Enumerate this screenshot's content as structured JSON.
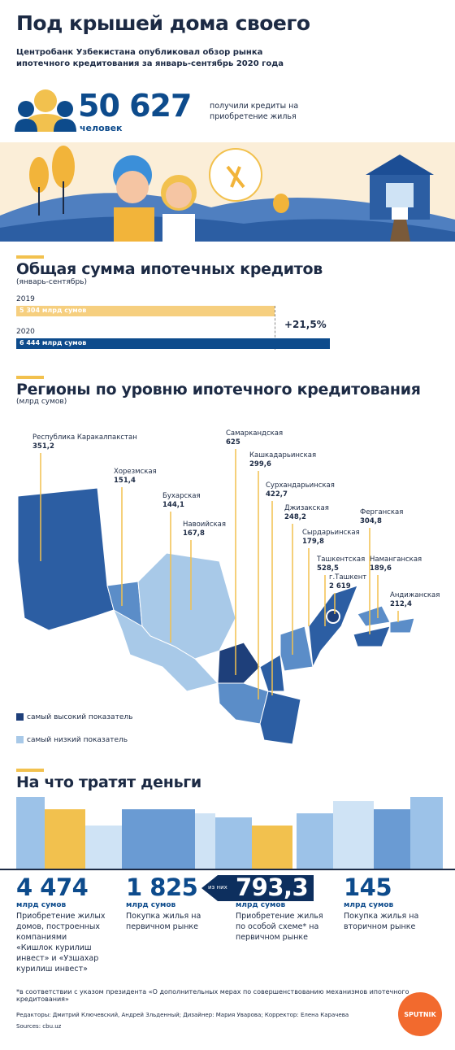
{
  "header": {
    "title": "Под крышей дома своего",
    "subtitle": "Центробанк Узбекистана опубликовал обзор рынка ипотечного кредитования за январь-сентябрь 2020 года"
  },
  "headline": {
    "number": "50 627",
    "unit": "человек",
    "text": "получили кредиты на приобретение жилья"
  },
  "total": {
    "title": "Общая сумма ипотечных кредитов",
    "subtitle": "(январь-сентябрь)",
    "bars": [
      {
        "year": "2019",
        "label": "5 304 млрд сумов",
        "value": 5304
      },
      {
        "year": "2020",
        "label": "6 444 млрд сумов",
        "value": 6444
      }
    ],
    "change": "+21,5%"
  },
  "regions": {
    "title": "Регионы по уровню ипотечного кредитования",
    "subtitle": "(млрд сумов)",
    "items": [
      {
        "name": "Республика Каракалпакстан",
        "value": "351,2"
      },
      {
        "name": "Хорезмская",
        "value": "151,4"
      },
      {
        "name": "Бухарская",
        "value": "144,1"
      },
      {
        "name": "Навоийская",
        "value": "167,8"
      },
      {
        "name": "Самаркандская",
        "value": "625"
      },
      {
        "name": "Кашкадарьинская",
        "value": "299,6"
      },
      {
        "name": "Сурхандарьинская",
        "value": "422,7"
      },
      {
        "name": "Джизакская",
        "value": "248,2"
      },
      {
        "name": "Сырдарьинская",
        "value": "179,8"
      },
      {
        "name": "Ташкентская",
        "value": "528,5"
      },
      {
        "name": "г.Ташкент",
        "value": "2 619"
      },
      {
        "name": "Ферганская",
        "value": "304,8"
      },
      {
        "name": "Наманганская",
        "value": "189,6"
      },
      {
        "name": "Андижанская",
        "value": "212,4"
      }
    ],
    "legend": {
      "high": "самый высокий показатель",
      "low": "самый низкий показатель"
    }
  },
  "spending": {
    "title": "На что тратят деньги",
    "items": [
      {
        "value": "4 474",
        "unit": "млрд сумов",
        "text": "Приобретение жилых домов, построенных компаниями «Кишлок курилиш инвест» и «Узшахар курилиш инвест»"
      },
      {
        "value": "1 825",
        "unit": "млрд сумов",
        "text": "Покупка жилья на первичном рынке"
      },
      {
        "value": "793,3",
        "unit": "млрд сумов",
        "text": "Приобретение жилья по особой схеме* на первичном рынке"
      },
      {
        "value": "145",
        "unit": "млрд сумов",
        "text": "Покупка жилья на вторичном рынке"
      }
    ],
    "of_which": "из них"
  },
  "footnote": "*в соответствии с указом президента  «О дополнительных мерах по совершенствованию механизмов ипотечного кредитования»",
  "credits": "Редакторы: Дмитрий Ключевский, Андрей Зльденный; Дизайнер: Мария Уварова; Корректор: Елена Карачева",
  "sources": "Sources: cbu.uz",
  "logo": "SPUTNIK"
}
